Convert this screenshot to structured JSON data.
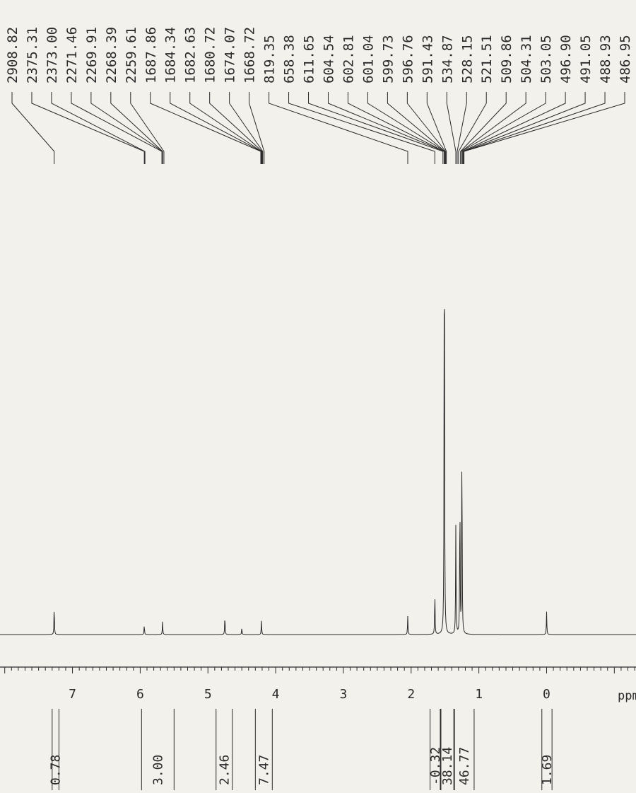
{
  "chart_data": {
    "type": "line",
    "title": "",
    "xlabel": "ppm",
    "ylabel": "",
    "x_reversed": true,
    "xlim": [
      8.07,
      -1.32
    ],
    "grid": false,
    "x_ticks": [
      7,
      6,
      5,
      4,
      3,
      2,
      1,
      0
    ],
    "x_tick_labels": [
      "7",
      "6",
      "5",
      "4",
      "3",
      "2",
      "1",
      "0"
    ],
    "peak_labels": [
      "2908.82",
      "2375.31",
      "2373.00",
      "2271.46",
      "2269.91",
      "2268.39",
      "2259.61",
      "1687.86",
      "1684.34",
      "1682.63",
      "1680.72",
      "1674.07",
      "1668.72",
      "819.35",
      "658.38",
      "611.65",
      "604.54",
      "602.81",
      "601.04",
      "599.73",
      "596.76",
      "591.43",
      "534.87",
      "528.15",
      "521.51",
      "509.86",
      "504.31",
      "503.05",
      "496.90",
      "491.05",
      "488.93",
      "486.95"
    ],
    "peak_ppm": [
      7.27,
      5.94,
      5.93,
      5.68,
      5.67,
      5.67,
      5.65,
      4.22,
      4.21,
      4.21,
      4.2,
      4.19,
      4.17,
      2.05,
      1.65,
      1.53,
      1.51,
      1.51,
      1.5,
      1.5,
      1.49,
      1.48,
      1.34,
      1.32,
      1.3,
      1.27,
      1.26,
      1.26,
      1.24,
      1.23,
      1.22,
      1.22
    ],
    "integrals": [
      {
        "label": "0.78",
        "from": 7.3,
        "to": 7.2
      },
      {
        "label": "3.00",
        "from": 5.98,
        "to": 5.5
      },
      {
        "label": "2.46",
        "from": 4.88,
        "to": 4.64
      },
      {
        "label": "7.47",
        "from": 4.3,
        "to": 4.05
      },
      {
        "label": "-0.32",
        "from": 1.72,
        "to": 1.57
      },
      {
        "label": "38.14",
        "from": 1.56,
        "to": 1.37
      },
      {
        "label": "46.77",
        "from": 1.36,
        "to": 1.07
      },
      {
        "label": "1.69",
        "from": 0.07,
        "to": -0.08
      }
    ],
    "spectrum_peaks": [
      {
        "ppm": 7.27,
        "height": 0.06
      },
      {
        "ppm": 5.94,
        "height": 0.02
      },
      {
        "ppm": 5.67,
        "height": 0.028
      },
      {
        "ppm": 4.75,
        "height": 0.04
      },
      {
        "ppm": 4.5,
        "height": 0.015
      },
      {
        "ppm": 4.21,
        "height": 0.03
      },
      {
        "ppm": 2.05,
        "height": 0.04
      },
      {
        "ppm": 1.65,
        "height": 0.09
      },
      {
        "ppm": 1.51,
        "height": 1.0
      },
      {
        "ppm": 1.34,
        "height": 0.24
      },
      {
        "ppm": 1.28,
        "height": 0.3
      },
      {
        "ppm": 1.25,
        "height": 0.42
      },
      {
        "ppm": 0.0,
        "height": 0.05
      }
    ]
  }
}
